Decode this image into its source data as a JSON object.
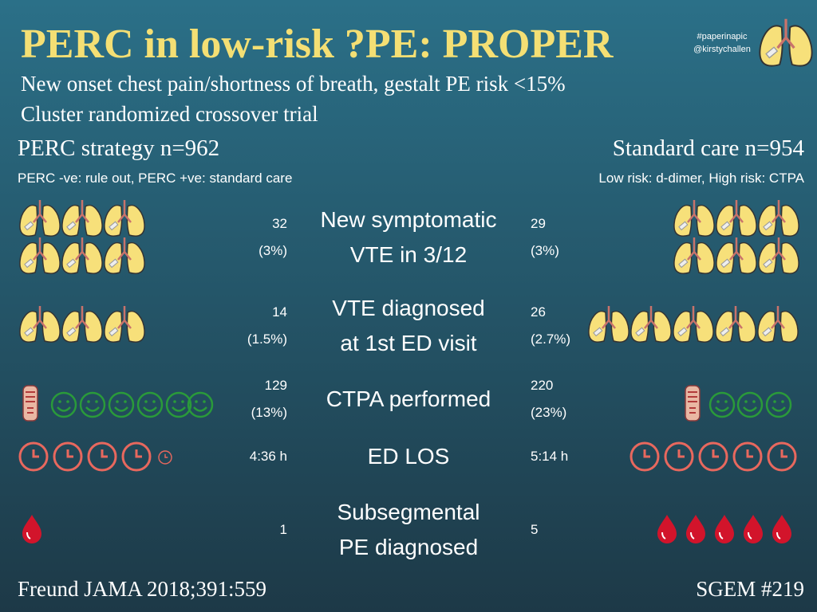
{
  "title": "PERC in low-risk ?PE: PROPER",
  "handles": [
    "#paperinapic",
    "@kirstychallen"
  ],
  "subtitle_lines": [
    "New onset chest pain/shortness of breath, gestalt PE risk <15%",
    "Cluster randomized crossover trial"
  ],
  "arms": [
    {
      "name": "PERC strategy n=962",
      "description": "PERC -ve: rule out, PERC +ve: standard care"
    },
    {
      "name": "Standard care n=954",
      "description": "Low risk: d-dimer, High risk: CTPA"
    }
  ],
  "rows": [
    {
      "outcome_lines": [
        "New symptomatic",
        "VTE in 3/12"
      ],
      "perc": [
        "32",
        "(3%)"
      ],
      "standard": [
        "29",
        "(3%)"
      ]
    },
    {
      "outcome_lines": [
        "VTE diagnosed",
        "at 1st ED visit"
      ],
      "perc": [
        "14",
        "(1.5%)"
      ],
      "standard": [
        "26",
        "(2.7%)"
      ]
    },
    {
      "outcome_lines": [
        "CTPA performed"
      ],
      "perc": [
        "129",
        "(13%)"
      ],
      "standard": [
        "220",
        "(23%)"
      ]
    },
    {
      "outcome_lines": [
        "ED LOS"
      ],
      "perc": [
        "4:36 h"
      ],
      "standard": [
        "5:14 h"
      ]
    },
    {
      "outcome_lines": [
        "Subsegmental",
        "PE diagnosed"
      ],
      "perc": [
        "1"
      ],
      "standard": [
        "5"
      ]
    }
  ],
  "footer": {
    "citation": "Freund JAMA 2018;391:559",
    "tag": "SGEM #219"
  }
}
